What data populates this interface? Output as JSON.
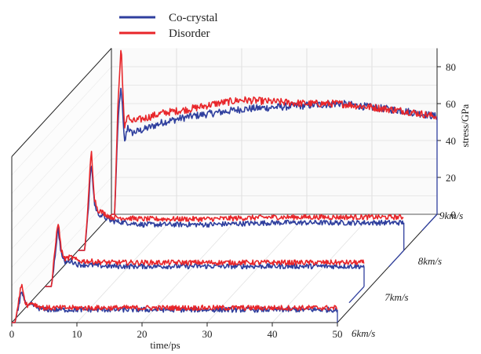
{
  "chart_data": {
    "type": "line",
    "style": "3d-waterfall",
    "xlabel": "time/ps",
    "zlabel": "stress/GPa",
    "x_ticks": [
      0,
      10,
      20,
      30,
      40,
      50
    ],
    "xlim": [
      0,
      50
    ],
    "z_ticks": [
      0,
      20,
      40,
      60,
      80
    ],
    "zlim": [
      0,
      90
    ],
    "depth_axis_labels": [
      "6km/s",
      "7km/s",
      "8km/s",
      "9km/s"
    ],
    "grid": true,
    "legend_position": "top-left",
    "series": [
      {
        "name": "Co-crystal",
        "color": "#2f3f9e"
      },
      {
        "name": "Disorder",
        "color": "#e8262a"
      }
    ],
    "panels": [
      {
        "label": "6km/s",
        "shock_time": 0.5,
        "Co-crystal": [
          [
            0,
            0
          ],
          [
            0.5,
            0
          ],
          [
            1,
            8
          ],
          [
            1.5,
            18
          ],
          [
            2,
            11
          ],
          [
            2.5,
            8
          ],
          [
            3,
            10
          ],
          [
            4,
            8
          ],
          [
            5,
            7
          ],
          [
            10,
            7
          ],
          [
            20,
            7
          ],
          [
            30,
            7
          ],
          [
            40,
            7
          ],
          [
            50,
            7
          ]
        ],
        "Disorder": [
          [
            0,
            0
          ],
          [
            0.5,
            0
          ],
          [
            1,
            10
          ],
          [
            1.5,
            22
          ],
          [
            2,
            12
          ],
          [
            2.5,
            9
          ],
          [
            3,
            11
          ],
          [
            4,
            9
          ],
          [
            5,
            8
          ],
          [
            10,
            8
          ],
          [
            20,
            8
          ],
          [
            30,
            8
          ],
          [
            40,
            8
          ],
          [
            50,
            8
          ]
        ]
      },
      {
        "label": "7km/s",
        "shock_time": 1.0,
        "Co-crystal": [
          [
            0,
            0
          ],
          [
            1,
            0
          ],
          [
            1.5,
            15
          ],
          [
            2,
            32
          ],
          [
            2.5,
            18
          ],
          [
            3,
            13
          ],
          [
            4,
            14
          ],
          [
            5,
            12
          ],
          [
            10,
            11
          ],
          [
            20,
            11
          ],
          [
            30,
            11
          ],
          [
            40,
            11
          ],
          [
            49,
            11
          ]
        ],
        "Disorder": [
          [
            0,
            0
          ],
          [
            1,
            0
          ],
          [
            1.5,
            18
          ],
          [
            2,
            36
          ],
          [
            2.5,
            20
          ],
          [
            3,
            15
          ],
          [
            4,
            16
          ],
          [
            5,
            14
          ],
          [
            10,
            13
          ],
          [
            20,
            13
          ],
          [
            30,
            13
          ],
          [
            40,
            13
          ],
          [
            49,
            13
          ]
        ]
      },
      {
        "label": "8km/s",
        "shock_time": 1.0,
        "Co-crystal": [
          [
            0,
            0
          ],
          [
            1,
            0
          ],
          [
            1.5,
            20
          ],
          [
            2,
            48
          ],
          [
            2.5,
            25
          ],
          [
            3,
            20
          ],
          [
            4,
            18
          ],
          [
            5,
            16
          ],
          [
            10,
            14
          ],
          [
            20,
            14
          ],
          [
            30,
            15
          ],
          [
            40,
            15
          ],
          [
            50,
            15
          ]
        ],
        "Disorder": [
          [
            0,
            0
          ],
          [
            1,
            0
          ],
          [
            1.5,
            24
          ],
          [
            2,
            55
          ],
          [
            2.5,
            28
          ],
          [
            3,
            22
          ],
          [
            4,
            20
          ],
          [
            5,
            18
          ],
          [
            10,
            17
          ],
          [
            20,
            17
          ],
          [
            30,
            18
          ],
          [
            40,
            18
          ],
          [
            50,
            18
          ]
        ]
      },
      {
        "label": "9km/s",
        "shock_time": 0.5,
        "Co-crystal": [
          [
            0,
            0
          ],
          [
            0.5,
            0
          ],
          [
            1,
            50
          ],
          [
            1.5,
            70
          ],
          [
            2,
            38
          ],
          [
            2.5,
            48
          ],
          [
            3,
            44
          ],
          [
            5,
            46
          ],
          [
            8,
            50
          ],
          [
            12,
            53
          ],
          [
            16,
            55
          ],
          [
            20,
            57
          ],
          [
            25,
            58
          ],
          [
            30,
            59
          ],
          [
            35,
            60
          ],
          [
            40,
            58
          ],
          [
            45,
            56
          ],
          [
            50,
            53
          ]
        ],
        "Disorder": [
          [
            0,
            0
          ],
          [
            0.5,
            0
          ],
          [
            1,
            60
          ],
          [
            1.5,
            92
          ],
          [
            2,
            45
          ],
          [
            2.5,
            55
          ],
          [
            3,
            50
          ],
          [
            5,
            52
          ],
          [
            8,
            55
          ],
          [
            12,
            57
          ],
          [
            16,
            60
          ],
          [
            20,
            62
          ],
          [
            25,
            61
          ],
          [
            30,
            60
          ],
          [
            35,
            60
          ],
          [
            40,
            58
          ],
          [
            45,
            56
          ],
          [
            50,
            53
          ]
        ]
      }
    ]
  }
}
